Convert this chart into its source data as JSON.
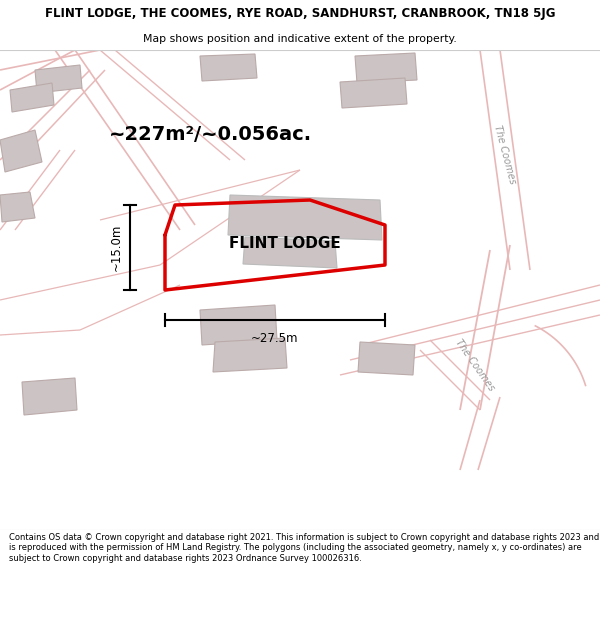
{
  "title": "FLINT LODGE, THE COOMES, RYE ROAD, SANDHURST, CRANBROOK, TN18 5JG",
  "subtitle": "Map shows position and indicative extent of the property.",
  "copyright_text": "Contains OS data © Crown copyright and database right 2021. This information is subject to Crown copyright and database rights 2023 and is reproduced with the permission of HM Land Registry. The polygons (including the associated geometry, namely x, y co-ordinates) are subject to Crown copyright and database rights 2023 Ordnance Survey 100026316.",
  "area_label": "~227m²/~0.056ac.",
  "width_label": "~27.5m",
  "height_label": "~15.0m",
  "property_label": "FLINT LODGE",
  "road_label_1": "The Coomes",
  "road_label_2": "The Coomes",
  "map_bg": "#f2eded",
  "outline_color": "#dd0000",
  "road_color": "#e8b8b8",
  "building_color": "#ccc4c4",
  "building_edge": "#bbaaaa"
}
